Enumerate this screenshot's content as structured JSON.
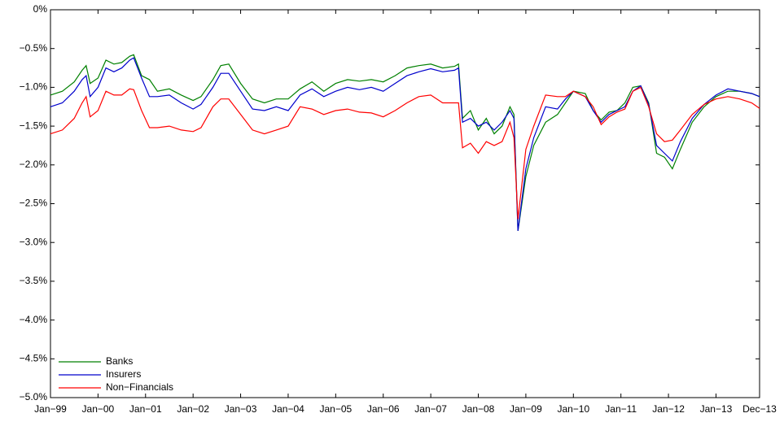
{
  "chart_data": {
    "type": "line",
    "x": [
      0,
      3,
      6,
      8,
      9,
      10,
      12,
      14,
      16,
      18,
      20,
      21,
      23,
      25,
      27,
      30,
      33,
      36,
      38,
      41,
      43,
      45,
      48,
      51,
      54,
      57,
      60,
      63,
      66,
      69,
      72,
      75,
      78,
      81,
      84,
      87,
      90,
      93,
      96,
      99,
      102,
      103,
      104,
      106,
      108,
      110,
      112,
      114,
      116,
      117,
      118,
      120,
      122,
      125,
      128,
      130,
      132,
      135,
      137,
      139,
      141,
      143,
      145,
      147,
      149,
      151,
      153,
      155,
      157,
      159,
      162,
      165,
      168,
      171,
      174,
      177,
      179
    ],
    "series": [
      {
        "name": "Banks",
        "color": "#008000",
        "values": [
          -1.1,
          -1.05,
          -0.93,
          -0.78,
          -0.72,
          -0.95,
          -0.88,
          -0.65,
          -0.7,
          -0.68,
          -0.6,
          -0.58,
          -0.85,
          -0.9,
          -1.05,
          -1.02,
          -1.1,
          -1.17,
          -1.12,
          -0.9,
          -0.72,
          -0.7,
          -0.95,
          -1.15,
          -1.2,
          -1.15,
          -1.15,
          -1.02,
          -0.93,
          -1.05,
          -0.95,
          -0.9,
          -0.92,
          -0.9,
          -0.93,
          -0.85,
          -0.75,
          -0.72,
          -0.7,
          -0.75,
          -0.73,
          -0.7,
          -1.4,
          -1.3,
          -1.55,
          -1.4,
          -1.6,
          -1.5,
          -1.25,
          -1.35,
          -2.85,
          -2.15,
          -1.75,
          -1.45,
          -1.35,
          -1.2,
          -1.05,
          -1.08,
          -1.3,
          -1.42,
          -1.32,
          -1.3,
          -1.2,
          -1.0,
          -0.98,
          -1.2,
          -1.85,
          -1.9,
          -2.05,
          -1.8,
          -1.45,
          -1.25,
          -1.12,
          -1.05,
          -1.05,
          -1.08,
          -1.12
        ]
      },
      {
        "name": "Insurers",
        "color": "#0000cc",
        "values": [
          -1.25,
          -1.2,
          -1.05,
          -0.9,
          -0.85,
          -1.12,
          -1.0,
          -0.75,
          -0.8,
          -0.75,
          -0.65,
          -0.62,
          -0.88,
          -1.12,
          -1.12,
          -1.1,
          -1.2,
          -1.28,
          -1.22,
          -1.0,
          -0.82,
          -0.82,
          -1.05,
          -1.28,
          -1.3,
          -1.25,
          -1.3,
          -1.1,
          -1.02,
          -1.12,
          -1.05,
          -1.0,
          -1.03,
          -1.0,
          -1.05,
          -0.95,
          -0.85,
          -0.8,
          -0.76,
          -0.8,
          -0.78,
          -0.75,
          -1.45,
          -1.4,
          -1.5,
          -1.45,
          -1.55,
          -1.45,
          -1.3,
          -1.4,
          -2.85,
          -2.05,
          -1.65,
          -1.25,
          -1.28,
          -1.15,
          -1.05,
          -1.12,
          -1.3,
          -1.45,
          -1.35,
          -1.3,
          -1.25,
          -1.05,
          -0.98,
          -1.22,
          -1.75,
          -1.85,
          -1.95,
          -1.7,
          -1.4,
          -1.22,
          -1.1,
          -1.02,
          -1.05,
          -1.08,
          -1.12
        ]
      },
      {
        "name": "Non−Financials",
        "color": "#ff0000",
        "values": [
          -1.6,
          -1.55,
          -1.4,
          -1.2,
          -1.12,
          -1.38,
          -1.3,
          -1.05,
          -1.1,
          -1.1,
          -1.02,
          -1.03,
          -1.3,
          -1.52,
          -1.52,
          -1.5,
          -1.55,
          -1.57,
          -1.52,
          -1.25,
          -1.15,
          -1.15,
          -1.35,
          -1.55,
          -1.6,
          -1.55,
          -1.5,
          -1.25,
          -1.28,
          -1.35,
          -1.3,
          -1.28,
          -1.32,
          -1.33,
          -1.38,
          -1.3,
          -1.2,
          -1.12,
          -1.1,
          -1.2,
          -1.2,
          -1.2,
          -1.78,
          -1.72,
          -1.85,
          -1.7,
          -1.75,
          -1.7,
          -1.45,
          -1.65,
          -2.7,
          -1.8,
          -1.5,
          -1.1,
          -1.12,
          -1.12,
          -1.05,
          -1.12,
          -1.25,
          -1.48,
          -1.38,
          -1.32,
          -1.28,
          -1.05,
          -1.0,
          -1.25,
          -1.6,
          -1.7,
          -1.68,
          -1.55,
          -1.35,
          -1.22,
          -1.15,
          -1.12,
          -1.15,
          -1.2,
          -1.27
        ]
      }
    ],
    "xlim": [
      0,
      179
    ],
    "xticks": [
      {
        "value": 0,
        "label": "Jan−99"
      },
      {
        "value": 12,
        "label": "Jan−00"
      },
      {
        "value": 24,
        "label": "Jan−01"
      },
      {
        "value": 36,
        "label": "Jan−02"
      },
      {
        "value": 48,
        "label": "Jan−03"
      },
      {
        "value": 60,
        "label": "Jan−04"
      },
      {
        "value": 72,
        "label": "Jan−05"
      },
      {
        "value": 84,
        "label": "Jan−06"
      },
      {
        "value": 96,
        "label": "Jan−07"
      },
      {
        "value": 108,
        "label": "Jan−08"
      },
      {
        "value": 120,
        "label": "Jan−09"
      },
      {
        "value": 132,
        "label": "Jan−10"
      },
      {
        "value": 144,
        "label": "Jan−11"
      },
      {
        "value": 156,
        "label": "Jan−12"
      },
      {
        "value": 168,
        "label": "Jan−13"
      },
      {
        "value": 179,
        "label": "Dec−13"
      }
    ],
    "ylim": [
      -5,
      0
    ],
    "yticks": [
      {
        "value": -5,
        "label": "−5.0%"
      },
      {
        "value": -4.5,
        "label": "−4.5%"
      },
      {
        "value": -4,
        "label": "−4.0%"
      },
      {
        "value": -3.5,
        "label": "−3.5%"
      },
      {
        "value": -3,
        "label": "−3.0%"
      },
      {
        "value": -2.5,
        "label": "−2.5%"
      },
      {
        "value": -2,
        "label": "−2.0%"
      },
      {
        "value": -1.5,
        "label": "−1.5%"
      },
      {
        "value": -1,
        "label": "−1.0%"
      },
      {
        "value": -0.5,
        "label": "−0.5%"
      },
      {
        "value": 0,
        "label": "0%"
      }
    ],
    "legend": "lower-left"
  }
}
